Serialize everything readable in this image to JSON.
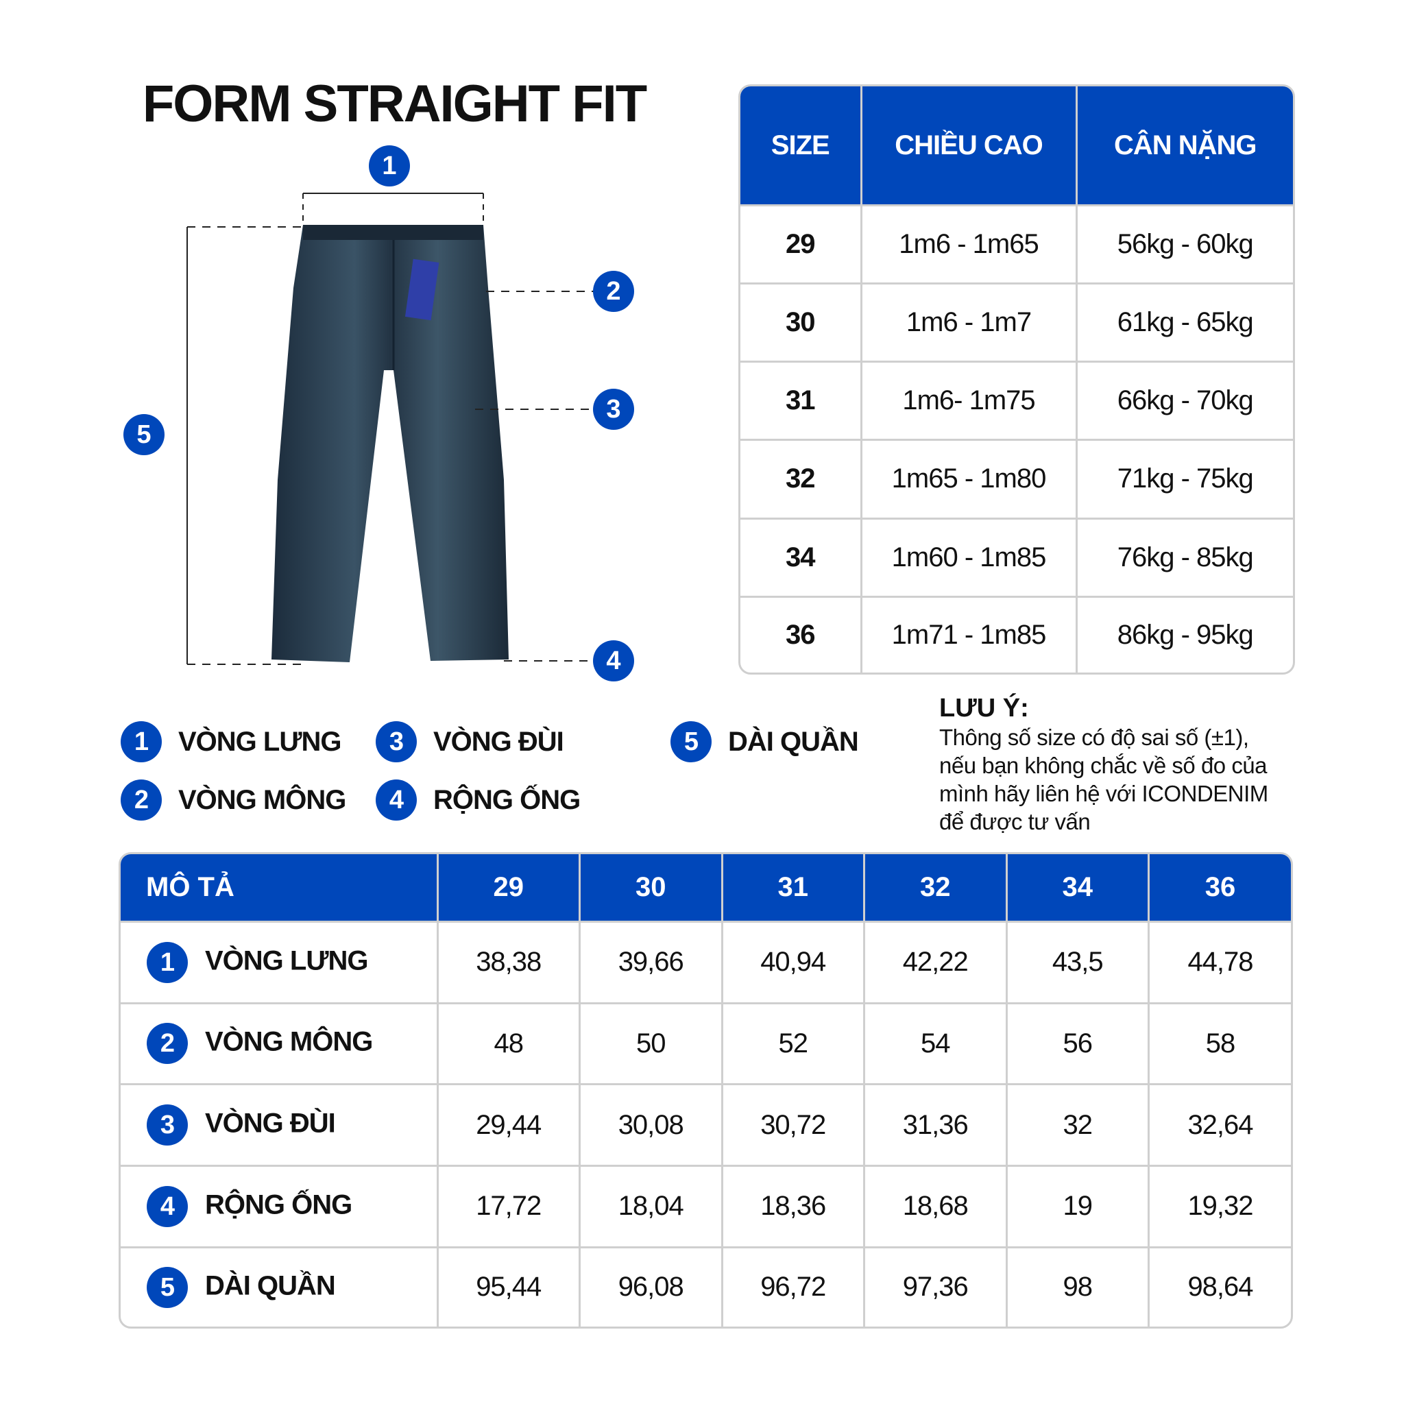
{
  "title": "FORM STRAIGHT FIT",
  "brand_color": "#0047BA",
  "size_table": {
    "headers": [
      "SIZE",
      "CHIỀU CAO",
      "CÂN NẶNG"
    ],
    "rows": [
      [
        "29",
        "1m6 - 1m65",
        "56kg - 60kg"
      ],
      [
        "30",
        "1m6 - 1m7",
        "61kg - 65kg"
      ],
      [
        "31",
        "1m6- 1m75",
        "66kg - 70kg"
      ],
      [
        "32",
        "1m65 - 1m80",
        "71kg - 75kg"
      ],
      [
        "34",
        "1m60 - 1m85",
        "76kg - 85kg"
      ],
      [
        "36",
        "1m71 - 1m85",
        "86kg - 95kg"
      ]
    ]
  },
  "diagram": {
    "markers": [
      "1",
      "2",
      "3",
      "4",
      "5"
    ]
  },
  "legend": [
    {
      "num": "1",
      "label": "VÒNG LƯNG"
    },
    {
      "num": "2",
      "label": "VÒNG MÔNG"
    },
    {
      "num": "3",
      "label": "VÒNG ĐÙI"
    },
    {
      "num": "4",
      "label": "RỘNG ỐNG"
    },
    {
      "num": "5",
      "label": "DÀI QUẦN"
    }
  ],
  "note": {
    "title": "LƯU Ý:",
    "lines": [
      "Thông số size có độ sai số (±1),",
      "nếu bạn không chắc về số đo của",
      "mình hãy liên hệ với ICONDENIM",
      "để được tư vấn"
    ]
  },
  "measurement_table": {
    "headers": [
      "MÔ TẢ",
      "29",
      "30",
      "31",
      "32",
      "34",
      "36"
    ],
    "rows": [
      {
        "num": "1",
        "label": "VÒNG LƯNG",
        "values": [
          "38,38",
          "39,66",
          "40,94",
          "42,22",
          "43,5",
          "44,78"
        ]
      },
      {
        "num": "2",
        "label": "VÒNG MÔNG",
        "values": [
          "48",
          "50",
          "52",
          "54",
          "56",
          "58"
        ]
      },
      {
        "num": "3",
        "label": "VÒNG ĐÙI",
        "values": [
          "29,44",
          "30,08",
          "30,72",
          "31,36",
          "32",
          "32,64"
        ]
      },
      {
        "num": "4",
        "label": "RỘNG ỐNG",
        "values": [
          "17,72",
          "18,04",
          "18,36",
          "18,68",
          "19",
          "19,32"
        ]
      },
      {
        "num": "5",
        "label": "DÀI QUẦN",
        "values": [
          "95,44",
          "96,08",
          "96,72",
          "97,36",
          "98",
          "98,64"
        ]
      }
    ]
  }
}
